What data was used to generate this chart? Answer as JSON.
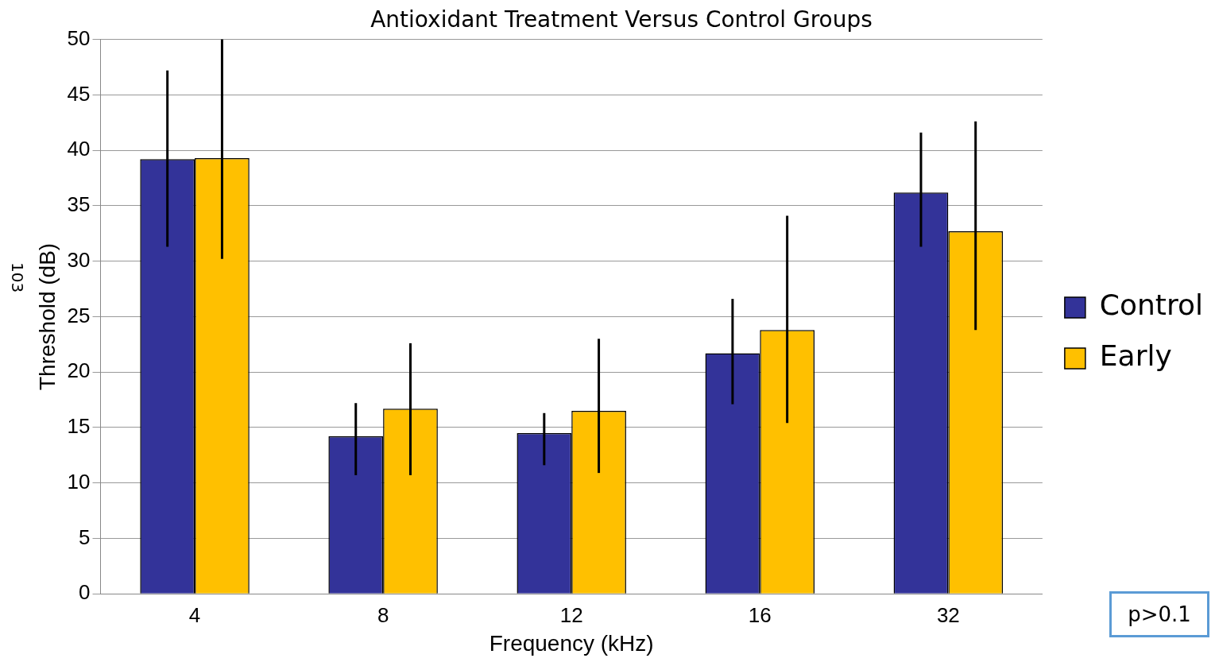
{
  "chart_data": {
    "type": "bar",
    "title": "Antioxidant Treatment Versus Control Groups",
    "xlabel": "Frequency (kHz)",
    "ylabel": "Threshold (dB)",
    "categories": [
      "4",
      "8",
      "12",
      "16",
      "32"
    ],
    "series": [
      {
        "name": "Control",
        "color": "#333399",
        "values": [
          39.2,
          14.2,
          14.5,
          21.7,
          36.2
        ],
        "errors": [
          [
            31.3,
            47.2
          ],
          [
            10.7,
            17.2
          ],
          [
            11.6,
            16.3
          ],
          [
            17.1,
            26.6
          ],
          [
            31.3,
            41.6
          ]
        ]
      },
      {
        "name": "Early",
        "color": "#ffc000",
        "values": [
          39.3,
          16.7,
          16.5,
          23.8,
          32.7
        ],
        "errors": [
          [
            30.2,
            50
          ],
          [
            10.7,
            22.6
          ],
          [
            10.9,
            23.0
          ],
          [
            15.4,
            34.1
          ],
          [
            23.8,
            42.6
          ]
        ]
      }
    ],
    "ylim": [
      0,
      50
    ],
    "yticks": [
      0,
      5,
      10,
      15,
      20,
      25,
      30,
      35,
      40,
      45,
      50
    ],
    "grid": "y",
    "legend": "right",
    "annotations": [
      "103",
      "p>0.1"
    ]
  }
}
